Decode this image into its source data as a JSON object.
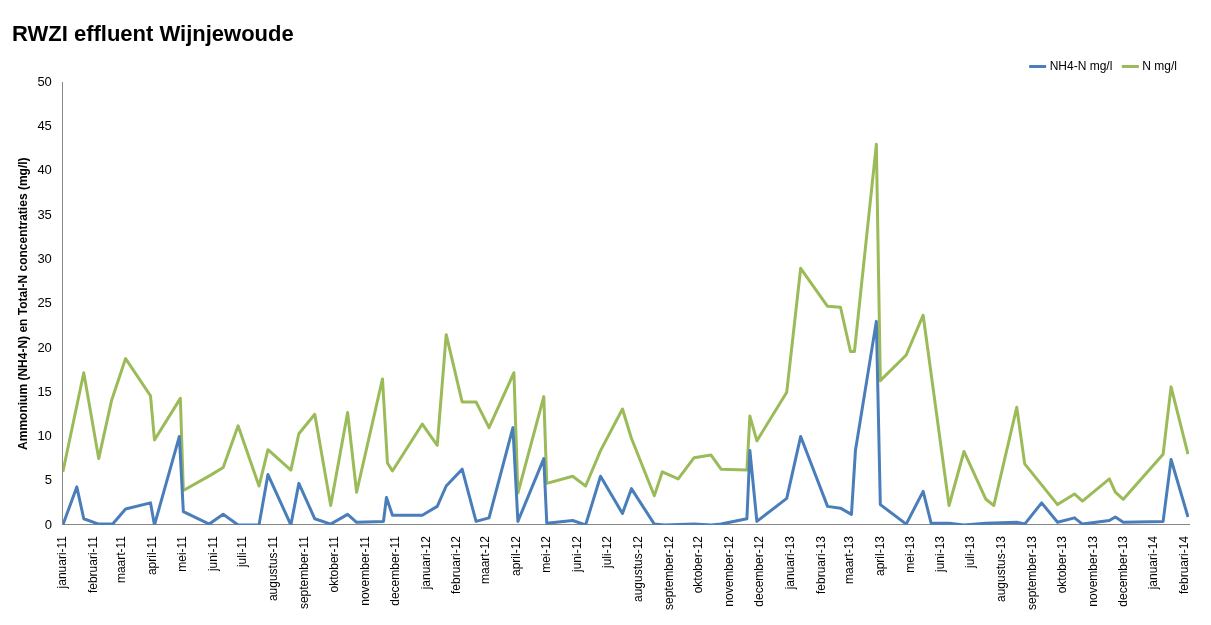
{
  "chart_data": {
    "type": "line",
    "title": "RWZI effluent Wijnjewoude",
    "ylabel": "Ammonium (NH4-N) en Total-N concentraties (mg/l)",
    "legend": "top right",
    "grid": false,
    "marker": "none",
    "line_style": "solid",
    "ylim": [
      0,
      50
    ],
    "yticks": [
      0,
      5,
      10,
      15,
      20,
      25,
      30,
      35,
      40,
      45,
      50
    ],
    "xlim": [
      "2011-01-01",
      "2014-02-05"
    ],
    "xticks": [
      {
        "value": "2011-01-01",
        "label": "januari-11"
      },
      {
        "value": "2011-02-01",
        "label": "februari-11"
      },
      {
        "value": "2011-03-01",
        "label": "maart-11"
      },
      {
        "value": "2011-04-01",
        "label": "april-11"
      },
      {
        "value": "2011-05-01",
        "label": "mei-11"
      },
      {
        "value": "2011-06-01",
        "label": "juni-11"
      },
      {
        "value": "2011-07-01",
        "label": "juli-11"
      },
      {
        "value": "2011-08-01",
        "label": "augustus-11"
      },
      {
        "value": "2011-09-01",
        "label": "september-11"
      },
      {
        "value": "2011-10-01",
        "label": "oktober-11"
      },
      {
        "value": "2011-11-01",
        "label": "november-11"
      },
      {
        "value": "2011-12-01",
        "label": "december-11"
      },
      {
        "value": "2012-01-01",
        "label": "januari-12"
      },
      {
        "value": "2012-02-01",
        "label": "februari-12"
      },
      {
        "value": "2012-03-01",
        "label": "maart-12"
      },
      {
        "value": "2012-04-01",
        "label": "april-12"
      },
      {
        "value": "2012-05-01",
        "label": "mei-12"
      },
      {
        "value": "2012-06-01",
        "label": "juni-12"
      },
      {
        "value": "2012-07-01",
        "label": "juli-12"
      },
      {
        "value": "2012-08-01",
        "label": "augustus-12"
      },
      {
        "value": "2012-09-01",
        "label": "september-12"
      },
      {
        "value": "2012-10-01",
        "label": "oktober-12"
      },
      {
        "value": "2012-11-01",
        "label": "november-12"
      },
      {
        "value": "2012-12-01",
        "label": "december-12"
      },
      {
        "value": "2013-01-01",
        "label": "januari-13"
      },
      {
        "value": "2013-02-01",
        "label": "februari-13"
      },
      {
        "value": "2013-03-01",
        "label": "maart-13"
      },
      {
        "value": "2013-04-01",
        "label": "april-13"
      },
      {
        "value": "2013-05-01",
        "label": "mei-13"
      },
      {
        "value": "2013-06-01",
        "label": "juni-13"
      },
      {
        "value": "2013-07-01",
        "label": "juli-13"
      },
      {
        "value": "2013-08-01",
        "label": "augustus-13"
      },
      {
        "value": "2013-09-01",
        "label": "september-13"
      },
      {
        "value": "2013-10-01",
        "label": "oktober-13"
      },
      {
        "value": "2013-11-01",
        "label": "november-13"
      },
      {
        "value": "2013-12-01",
        "label": "december-13"
      },
      {
        "value": "2014-01-01",
        "label": "januari-14"
      },
      {
        "value": "2014-02-01",
        "label": "februari-14"
      }
    ],
    "series": [
      {
        "name": "NH4-N mg/l",
        "color": "#4a7ebb",
        "x": [
          "2011-01-01",
          "2011-01-15",
          "2011-01-22",
          "2011-02-06",
          "2011-02-20",
          "2011-03-05",
          "2011-03-30",
          "2011-04-03",
          "2011-04-28",
          "2011-05-02",
          "2011-05-28",
          "2011-06-11",
          "2011-06-26",
          "2011-07-17",
          "2011-07-26",
          "2011-08-18",
          "2011-08-26",
          "2011-09-11",
          "2011-09-27",
          "2011-10-14",
          "2011-10-23",
          "2011-11-19",
          "2011-11-22",
          "2011-11-28",
          "2011-12-28",
          "2012-01-12",
          "2012-01-21",
          "2012-02-06",
          "2012-02-20",
          "2012-03-04",
          "2012-03-28",
          "2012-04-02",
          "2012-04-28",
          "2012-05-01",
          "2012-05-27",
          "2012-06-09",
          "2012-06-24",
          "2012-07-16",
          "2012-07-25",
          "2012-08-17",
          "2012-08-27",
          "2012-09-26",
          "2012-10-13",
          "2012-10-23",
          "2012-11-18",
          "2012-11-21",
          "2012-11-28",
          "2012-12-28",
          "2013-01-11",
          "2013-02-07",
          "2013-02-20",
          "2013-03-03",
          "2013-03-07",
          "2013-03-28",
          "2013-04-01",
          "2013-04-27",
          "2013-05-14",
          "2013-05-22",
          "2013-06-09",
          "2013-06-24",
          "2013-07-16",
          "2013-08-16",
          "2013-08-24",
          "2013-09-10",
          "2013-09-26",
          "2013-10-13",
          "2013-10-21",
          "2013-11-17",
          "2013-11-23",
          "2013-12-01",
          "2014-01-10",
          "2014-01-18",
          "2014-02-04"
        ],
        "values": [
          0,
          4.3,
          0.7,
          0.1,
          0.1,
          1.8,
          2.5,
          0,
          10,
          1.5,
          0.1,
          1.2,
          0,
          0,
          5.7,
          0,
          4.7,
          0.7,
          0.1,
          1.2,
          0.3,
          0.4,
          3.1,
          1.1,
          1.1,
          2.1,
          4.4,
          6.3,
          0.4,
          0.8,
          11,
          0.4,
          7.5,
          0.2,
          0.5,
          0,
          5.5,
          1.3,
          4.1,
          0.1,
          0,
          0.1,
          0,
          0.1,
          0.7,
          8.4,
          0.4,
          3,
          10,
          2.1,
          1.9,
          1.2,
          8.4,
          23,
          2.3,
          0.1,
          3.8,
          0.2,
          0.2,
          0,
          0.2,
          0.3,
          0.1,
          2.5,
          0.3,
          0.8,
          0.1,
          0.5,
          0.9,
          0.3,
          0.4,
          7.4,
          0.9
        ]
      },
      {
        "name": "N mg/l",
        "color": "#9bbb59",
        "x": [
          "2011-01-01",
          "2011-01-22",
          "2011-02-06",
          "2011-02-19",
          "2011-03-05",
          "2011-03-30",
          "2011-04-03",
          "2011-04-29",
          "2011-05-02",
          "2011-05-29",
          "2011-06-11",
          "2011-06-26",
          "2011-07-17",
          "2011-07-26",
          "2011-08-18",
          "2011-08-26",
          "2011-09-11",
          "2011-09-27",
          "2011-10-14",
          "2011-10-23",
          "2011-11-18",
          "2011-11-23",
          "2011-11-28",
          "2011-12-28",
          "2012-01-12",
          "2012-01-21",
          "2012-02-06",
          "2012-02-20",
          "2012-03-04",
          "2012-03-29",
          "2012-04-02",
          "2012-04-28",
          "2012-05-01",
          "2012-05-27",
          "2012-06-09",
          "2012-06-24",
          "2012-07-16",
          "2012-07-25",
          "2012-08-17",
          "2012-08-25",
          "2012-09-10",
          "2012-09-26",
          "2012-10-13",
          "2012-10-23",
          "2012-11-18",
          "2012-11-21",
          "2012-11-28",
          "2012-12-28",
          "2013-01-11",
          "2013-02-07",
          "2013-02-20",
          "2013-03-02",
          "2013-03-06",
          "2013-03-28",
          "2013-04-01",
          "2013-04-27",
          "2013-05-14",
          "2013-06-09",
          "2013-06-24",
          "2013-07-16",
          "2013-07-24",
          "2013-08-16",
          "2013-08-24",
          "2013-09-26",
          "2013-10-13",
          "2013-10-21",
          "2013-11-17",
          "2013-11-23",
          "2013-12-01",
          "2014-01-10",
          "2014-01-18",
          "2014-02-04"
        ],
        "values": [
          6,
          17.2,
          7.5,
          14.1,
          18.8,
          14.6,
          9.6,
          14.3,
          3.9,
          5.6,
          6.5,
          11.2,
          4.4,
          8.5,
          6.2,
          10.3,
          12.5,
          2.2,
          12.7,
          3.7,
          16.5,
          7,
          6.1,
          11.4,
          9,
          21.5,
          13.9,
          13.9,
          11,
          17.2,
          3.6,
          14.5,
          4.7,
          5.5,
          4.4,
          8.4,
          13.1,
          9.8,
          3.3,
          6,
          5.2,
          7.6,
          7.9,
          6.3,
          6.2,
          12.3,
          9.5,
          15,
          29,
          24.7,
          24.6,
          19.6,
          19.6,
          43,
          16.3,
          19.2,
          23.7,
          2.2,
          8.3,
          2.9,
          2.2,
          13.3,
          6.9,
          2.3,
          3.5,
          2.7,
          5.2,
          3.7,
          2.9,
          8,
          15.6,
          8
        ]
      }
    ]
  }
}
